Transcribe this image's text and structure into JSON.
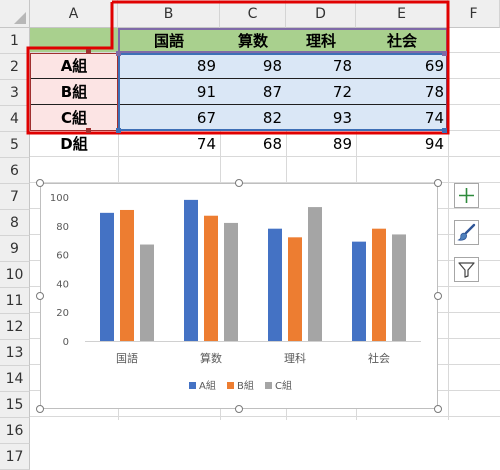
{
  "columns": [
    "A",
    "B",
    "C",
    "D",
    "E",
    "F"
  ],
  "rows": [
    "1",
    "2",
    "3",
    "4",
    "5",
    "6",
    "7",
    "8",
    "9",
    "10",
    "11",
    "12",
    "13",
    "14",
    "15",
    "16",
    "17"
  ],
  "table": {
    "headers": [
      "国語",
      "算数",
      "理科",
      "社会"
    ],
    "rows": [
      {
        "label": "A組",
        "values": [
          "89",
          "98",
          "78",
          "69"
        ]
      },
      {
        "label": "B組",
        "values": [
          "91",
          "87",
          "72",
          "78"
        ]
      },
      {
        "label": "C組",
        "values": [
          "67",
          "82",
          "93",
          "74"
        ]
      },
      {
        "label": "D組",
        "values": [
          "74",
          "68",
          "89",
          "94"
        ]
      }
    ]
  },
  "chart_data": {
    "type": "bar",
    "categories": [
      "国語",
      "算数",
      "理科",
      "社会"
    ],
    "series": [
      {
        "name": "A組",
        "values": [
          89,
          98,
          78,
          69
        ],
        "color": "#4472c4"
      },
      {
        "name": "B組",
        "values": [
          91,
          87,
          72,
          78
        ],
        "color": "#ed7d31"
      },
      {
        "name": "C組",
        "values": [
          67,
          82,
          93,
          74
        ],
        "color": "#a5a5a5"
      }
    ],
    "y_ticks": [
      "0",
      "20",
      "40",
      "60",
      "80",
      "100"
    ],
    "ylim": [
      0,
      100
    ],
    "legend_position": "bottom",
    "grid": false
  },
  "side_buttons": [
    {
      "name": "chart-elements-button",
      "icon": "plus-icon"
    },
    {
      "name": "chart-styles-button",
      "icon": "paintbrush-icon"
    },
    {
      "name": "chart-filters-button",
      "icon": "funnel-icon"
    }
  ],
  "colors": {
    "header_green": "#a9d08e",
    "label_pink": "#fce4e4",
    "data_blue": "#dae7f6",
    "selection_red": "#e00000"
  }
}
